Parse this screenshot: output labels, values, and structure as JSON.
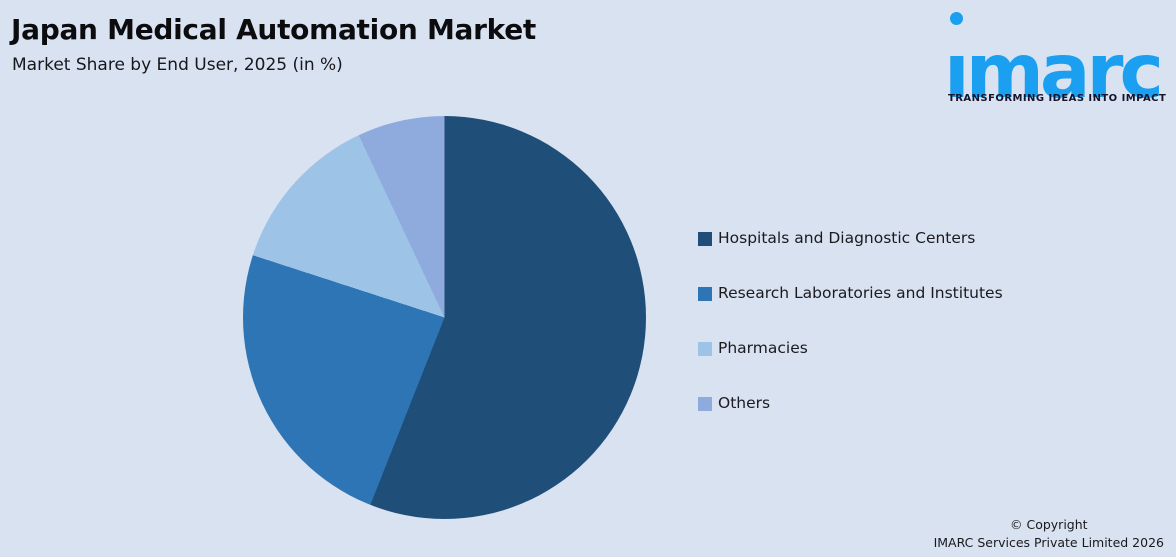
{
  "canvas": {
    "background": "#D9E2F1"
  },
  "header": {
    "title": "Japan Medical Automation Market",
    "subtitle": "Market Share by End User, 2025 (in %)"
  },
  "logo": {
    "brand": "imarc",
    "brand_display": "ımarc",
    "tagline": "TRANSFORMING IDEAS INTO IMPACT",
    "brand_color": "#1B9FF0"
  },
  "chart_data": {
    "type": "pie",
    "title": "Japan Medical Automation Market",
    "subtitle": "Market Share by End User, 2025 (in %)",
    "unit": "%",
    "categories": [
      "Hospitals and Diagnostic Centers",
      "Research Laboratories and Institutes",
      "Pharmacies",
      "Others"
    ],
    "values": [
      56,
      24,
      13,
      7
    ],
    "colors": [
      "#1F4E79",
      "#2E75B6",
      "#9DC3E6",
      "#8FAADC"
    ],
    "start_angle_deg": 0,
    "direction": "clockwise",
    "legend_position": "right",
    "data_labels": false
  },
  "footer": {
    "line1": "© Copyright",
    "line2": "IMARC Services Private Limited 2026"
  }
}
